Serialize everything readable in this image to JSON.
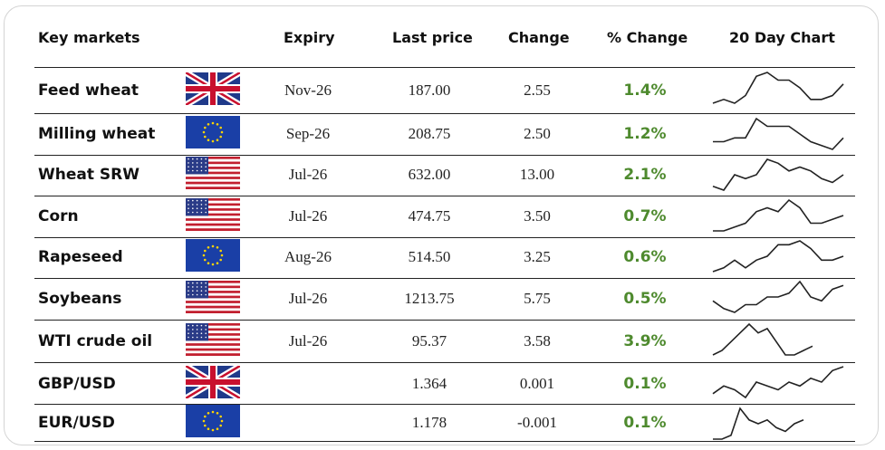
{
  "header": {
    "market": "Key markets",
    "expiry": "Expiry",
    "last_price": "Last price",
    "change": "Change",
    "pct_change": "% Change",
    "chart": "20 Day Chart"
  },
  "colors": {
    "positive": "#4e8a2e",
    "line": "#222222"
  },
  "rows": [
    {
      "name": "Feed wheat",
      "flag": "uk-flag-icon",
      "expiry": "Nov-26",
      "last": "187.00",
      "change": "2.55",
      "pct": "1.4%",
      "spark": [
        2,
        3,
        2,
        4,
        9,
        10,
        8,
        8,
        6,
        3,
        3,
        4,
        7
      ]
    },
    {
      "name": "Milling wheat",
      "flag": "eu-flag-icon",
      "expiry": "Sep-26",
      "last": "208.75",
      "change": "2.50",
      "pct": "1.2%",
      "spark": [
        4,
        4,
        5,
        5,
        10,
        8,
        8,
        8,
        6,
        4,
        3,
        2,
        5
      ]
    },
    {
      "name": "Wheat SRW",
      "flag": "us-flag-icon",
      "expiry": "Jul-26",
      "last": "632.00",
      "change": "13.00",
      "pct": "2.1%",
      "spark": [
        3,
        2,
        6,
        5,
        6,
        10,
        9,
        7,
        8,
        7,
        5,
        4,
        6
      ]
    },
    {
      "name": "Corn",
      "flag": "us-flag-icon",
      "expiry": "Jul-26",
      "last": "474.75",
      "change": "3.50",
      "pct": "0.7%",
      "spark": [
        1,
        1,
        2,
        3,
        6,
        7,
        6,
        9,
        7,
        3,
        3,
        4,
        5
      ]
    },
    {
      "name": "Rapeseed",
      "flag": "eu-flag-icon",
      "expiry": "Aug-26",
      "last": "514.50",
      "change": "3.25",
      "pct": "0.6%",
      "spark": [
        1,
        2,
        4,
        2,
        4,
        5,
        8,
        8,
        9,
        7,
        4,
        4,
        5
      ]
    },
    {
      "name": "Soybeans",
      "flag": "us-flag-icon",
      "expiry": "Jul-26",
      "last": "1213.75",
      "change": "5.75",
      "pct": "0.5%",
      "spark": [
        4,
        2,
        1,
        3,
        3,
        5,
        5,
        6,
        9,
        5,
        4,
        7,
        8
      ]
    },
    {
      "name": "WTI crude oil",
      "flag": "us-flag-icon",
      "expiry": "Jul-26",
      "last": "95.37",
      "change": "3.58",
      "pct": "3.9%",
      "spark": [
        2,
        3,
        5,
        7,
        9,
        7,
        8,
        5,
        2,
        2,
        3,
        4
      ]
    },
    {
      "name": "GBP/USD",
      "flag": "uk-flag-icon",
      "expiry": "",
      "last": "1.364",
      "change": "0.001",
      "pct": "0.1%",
      "spark": [
        2,
        4,
        3,
        1,
        5,
        4,
        3,
        5,
        4,
        6,
        5,
        8,
        9
      ]
    },
    {
      "name": "EUR/USD",
      "flag": "eu-flag-icon",
      "expiry": "",
      "last": "1.178",
      "change": "-0.001",
      "pct": "0.1%",
      "spark": [
        1,
        1,
        2,
        9,
        6,
        5,
        6,
        4,
        3,
        5,
        6
      ]
    }
  ]
}
